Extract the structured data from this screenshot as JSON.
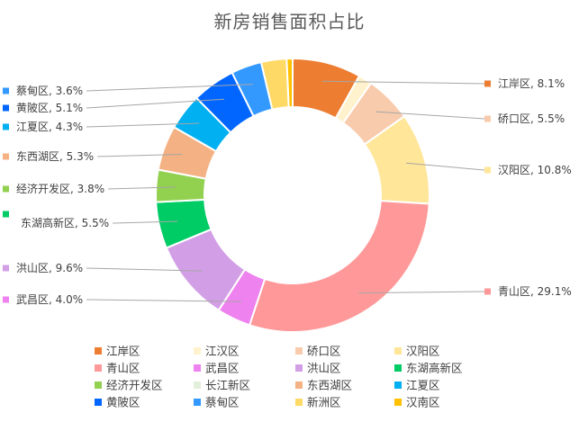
{
  "chart_data": {
    "type": "pie",
    "variant": "doughnut",
    "title": "新房销售面积占比",
    "slices": [
      {
        "name": "江岸区",
        "value": 8.1,
        "label": "8.1%",
        "color": "#ED7D31",
        "side": "right"
      },
      {
        "name": "江汉区",
        "value": 1.6,
        "label": "",
        "color": "#FFF2CC",
        "side": "none"
      },
      {
        "name": "硚口区",
        "value": 5.5,
        "label": "5.5%",
        "color": "#F8CBAD",
        "side": "right"
      },
      {
        "name": "汉阳区",
        "value": 10.8,
        "label": "10.8%",
        "color": "#FFE699",
        "side": "right"
      },
      {
        "name": "青山区",
        "value": 29.1,
        "label": "29.1%",
        "color": "#FF9999",
        "side": "right"
      },
      {
        "name": "武昌区",
        "value": 4.0,
        "label": "4.0%",
        "color": "#EE82EE",
        "side": "left"
      },
      {
        "name": "洪山区",
        "value": 9.6,
        "label": "9.6%",
        "color": "#D29FE6",
        "side": "left"
      },
      {
        "name": "东湖高新区",
        "value": 5.5,
        "label": "5.5%",
        "color": "#00CC66",
        "side": "left"
      },
      {
        "name": "经济开发区",
        "value": 3.8,
        "label": "3.8%",
        "color": "#92D050",
        "side": "left"
      },
      {
        "name": "长江新区",
        "value": 0.0,
        "label": "",
        "color": "#E2EFDA",
        "side": "none"
      },
      {
        "name": "东西湖区",
        "value": 5.3,
        "label": "5.3%",
        "color": "#F4B183",
        "side": "left"
      },
      {
        "name": "江夏区",
        "value": 4.3,
        "label": "4.3%",
        "color": "#00B0F0",
        "side": "left"
      },
      {
        "name": "黄陂区",
        "value": 5.1,
        "label": "5.1%",
        "color": "#0066FF",
        "side": "left"
      },
      {
        "name": "蔡甸区",
        "value": 3.6,
        "label": "3.6%",
        "color": "#3399FF",
        "side": "left"
      },
      {
        "name": "新洲区",
        "value": 3.0,
        "label": "",
        "color": "#FFD966",
        "side": "none"
      },
      {
        "name": "汉南区",
        "value": 0.7,
        "label": "",
        "color": "#FFC000",
        "side": "none"
      }
    ],
    "legend": {
      "placement": "bottom",
      "columns": 4
    }
  }
}
